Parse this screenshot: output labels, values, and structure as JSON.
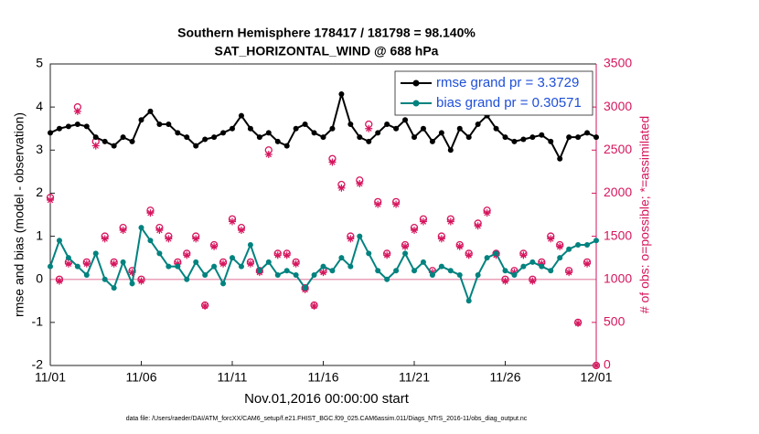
{
  "chart_data": {
    "type": "line",
    "title": "Southern Hemisphere 178417 / 181798 = 98.140%",
    "subtitle": "SAT_HORIZONTAL_WIND @ 688 hPa",
    "x_label": "Nov.01,2016 00:00:00 start",
    "y_label": "rmse and bias (model - observation)",
    "y2_label": "# of obs: o=possible; *=assimilated",
    "footnote": "data file: /Users/raeder/DAI/ATM_forcXX/CAM6_setup/f.e21.FHIST_BGC.f09_025.CAM6assim.011/Diags_NTrS_2016-11/obs_diag_output.nc",
    "legend": "top-right",
    "reference_line": 0,
    "xlim": [
      0,
      30
    ],
    "xticks": [
      {
        "value": 0,
        "label": "11/01"
      },
      {
        "value": 5,
        "label": "11/06"
      },
      {
        "value": 10,
        "label": "11/11"
      },
      {
        "value": 15,
        "label": "11/16"
      },
      {
        "value": 20,
        "label": "11/21"
      },
      {
        "value": 25,
        "label": "11/26"
      },
      {
        "value": 30,
        "label": "12/01"
      }
    ],
    "ylim": [
      -2,
      5
    ],
    "yticks": [
      -2,
      -1,
      0,
      1,
      2,
      3,
      4,
      5
    ],
    "y2lim": [
      0,
      3500
    ],
    "y2ticks": [
      0,
      500,
      1000,
      1500,
      2000,
      2500,
      3000,
      3500
    ],
    "x": [
      0,
      0.5,
      1,
      1.5,
      2,
      2.5,
      3,
      3.5,
      4,
      4.5,
      5,
      5.5,
      6,
      6.5,
      7,
      7.5,
      8,
      8.5,
      9,
      9.5,
      10,
      10.5,
      11,
      11.5,
      12,
      12.5,
      13,
      13.5,
      14,
      14.5,
      15,
      15.5,
      16,
      16.5,
      17,
      17.5,
      18,
      18.5,
      19,
      19.5,
      20,
      20.5,
      21,
      21.5,
      22,
      22.5,
      23,
      23.5,
      24,
      24.5,
      25,
      25.5,
      26,
      26.5,
      27,
      27.5,
      28,
      28.5,
      29,
      29.5,
      30
    ],
    "series": [
      {
        "name": "rmse grand pr = 3.3729",
        "color": "#000000",
        "marker": "dot",
        "values": [
          3.4,
          3.5,
          3.55,
          3.6,
          3.55,
          3.3,
          3.2,
          3.1,
          3.3,
          3.2,
          3.7,
          3.9,
          3.6,
          3.6,
          3.4,
          3.3,
          3.1,
          3.25,
          3.3,
          3.4,
          3.5,
          3.8,
          3.5,
          3.3,
          3.4,
          3.2,
          3.1,
          3.5,
          3.6,
          3.4,
          3.3,
          3.5,
          4.3,
          3.6,
          3.3,
          3.2,
          3.4,
          3.6,
          3.5,
          3.7,
          3.3,
          3.5,
          3.2,
          3.4,
          3.0,
          3.5,
          3.3,
          3.6,
          3.8,
          3.5,
          3.3,
          3.2,
          3.25,
          3.3,
          3.35,
          3.2,
          2.8,
          3.3,
          3.3,
          3.4,
          3.3
        ]
      },
      {
        "name": "bias grand pr = 0.30571",
        "color": "#00827f",
        "marker": "dot",
        "values": [
          0.3,
          0.9,
          0.5,
          0.3,
          0.1,
          0.6,
          0,
          -0.2,
          0.4,
          -0.1,
          1.2,
          0.9,
          0.6,
          0.3,
          0.3,
          0,
          0.4,
          0.1,
          0.3,
          -0.1,
          0.5,
          0.3,
          0.8,
          0.2,
          0.4,
          0.1,
          0.2,
          0.1,
          -0.2,
          0.1,
          0.3,
          0.2,
          0.5,
          0.3,
          1.0,
          0.6,
          0.2,
          0,
          0.2,
          0.6,
          0.2,
          0.4,
          0.1,
          0.3,
          0.2,
          0.1,
          -0.5,
          0.1,
          0.5,
          0.6,
          0.2,
          0.1,
          0.3,
          0.4,
          0.3,
          0.2,
          0.5,
          0.7,
          0.8,
          0.8,
          0.9
        ]
      },
      {
        "name": "possible",
        "color": "#d6165e",
        "axis": "y2",
        "marker": "circle",
        "values": [
          1950,
          1000,
          1200,
          3000,
          1200,
          2600,
          1500,
          1200,
          1600,
          1100,
          1000,
          1800,
          1600,
          1500,
          1200,
          1300,
          1500,
          700,
          1400,
          1200,
          1700,
          1600,
          1200,
          1100,
          2500,
          1300,
          1300,
          1200,
          900,
          700,
          1100,
          2400,
          2100,
          1500,
          2150,
          2800,
          1900,
          1300,
          1900,
          1400,
          1600,
          1700,
          1100,
          1500,
          1700,
          1400,
          1300,
          1650,
          1800,
          1300,
          1000,
          1100,
          1300,
          1000,
          1200,
          1500,
          1400,
          1100,
          500,
          1200,
          0
        ]
      },
      {
        "name": "assimilated",
        "color": "#d6165e",
        "axis": "y2",
        "marker": "asterisk",
        "values": [
          1920,
          980,
          1180,
          2950,
          1180,
          2550,
          1470,
          1180,
          1570,
          1080,
          980,
          1770,
          1570,
          1470,
          1180,
          1280,
          1470,
          690,
          1380,
          1180,
          1670,
          1570,
          1180,
          1080,
          2450,
          1280,
          1280,
          1180,
          880,
          690,
          1080,
          2360,
          2060,
          1470,
          2110,
          2750,
          1870,
          1280,
          1870,
          1380,
          1570,
          1670,
          1080,
          1470,
          1670,
          1380,
          1280,
          1620,
          1770,
          1280,
          980,
          1080,
          1280,
          980,
          1180,
          1470,
          1380,
          1080,
          490,
          1180,
          0
        ]
      }
    ]
  }
}
